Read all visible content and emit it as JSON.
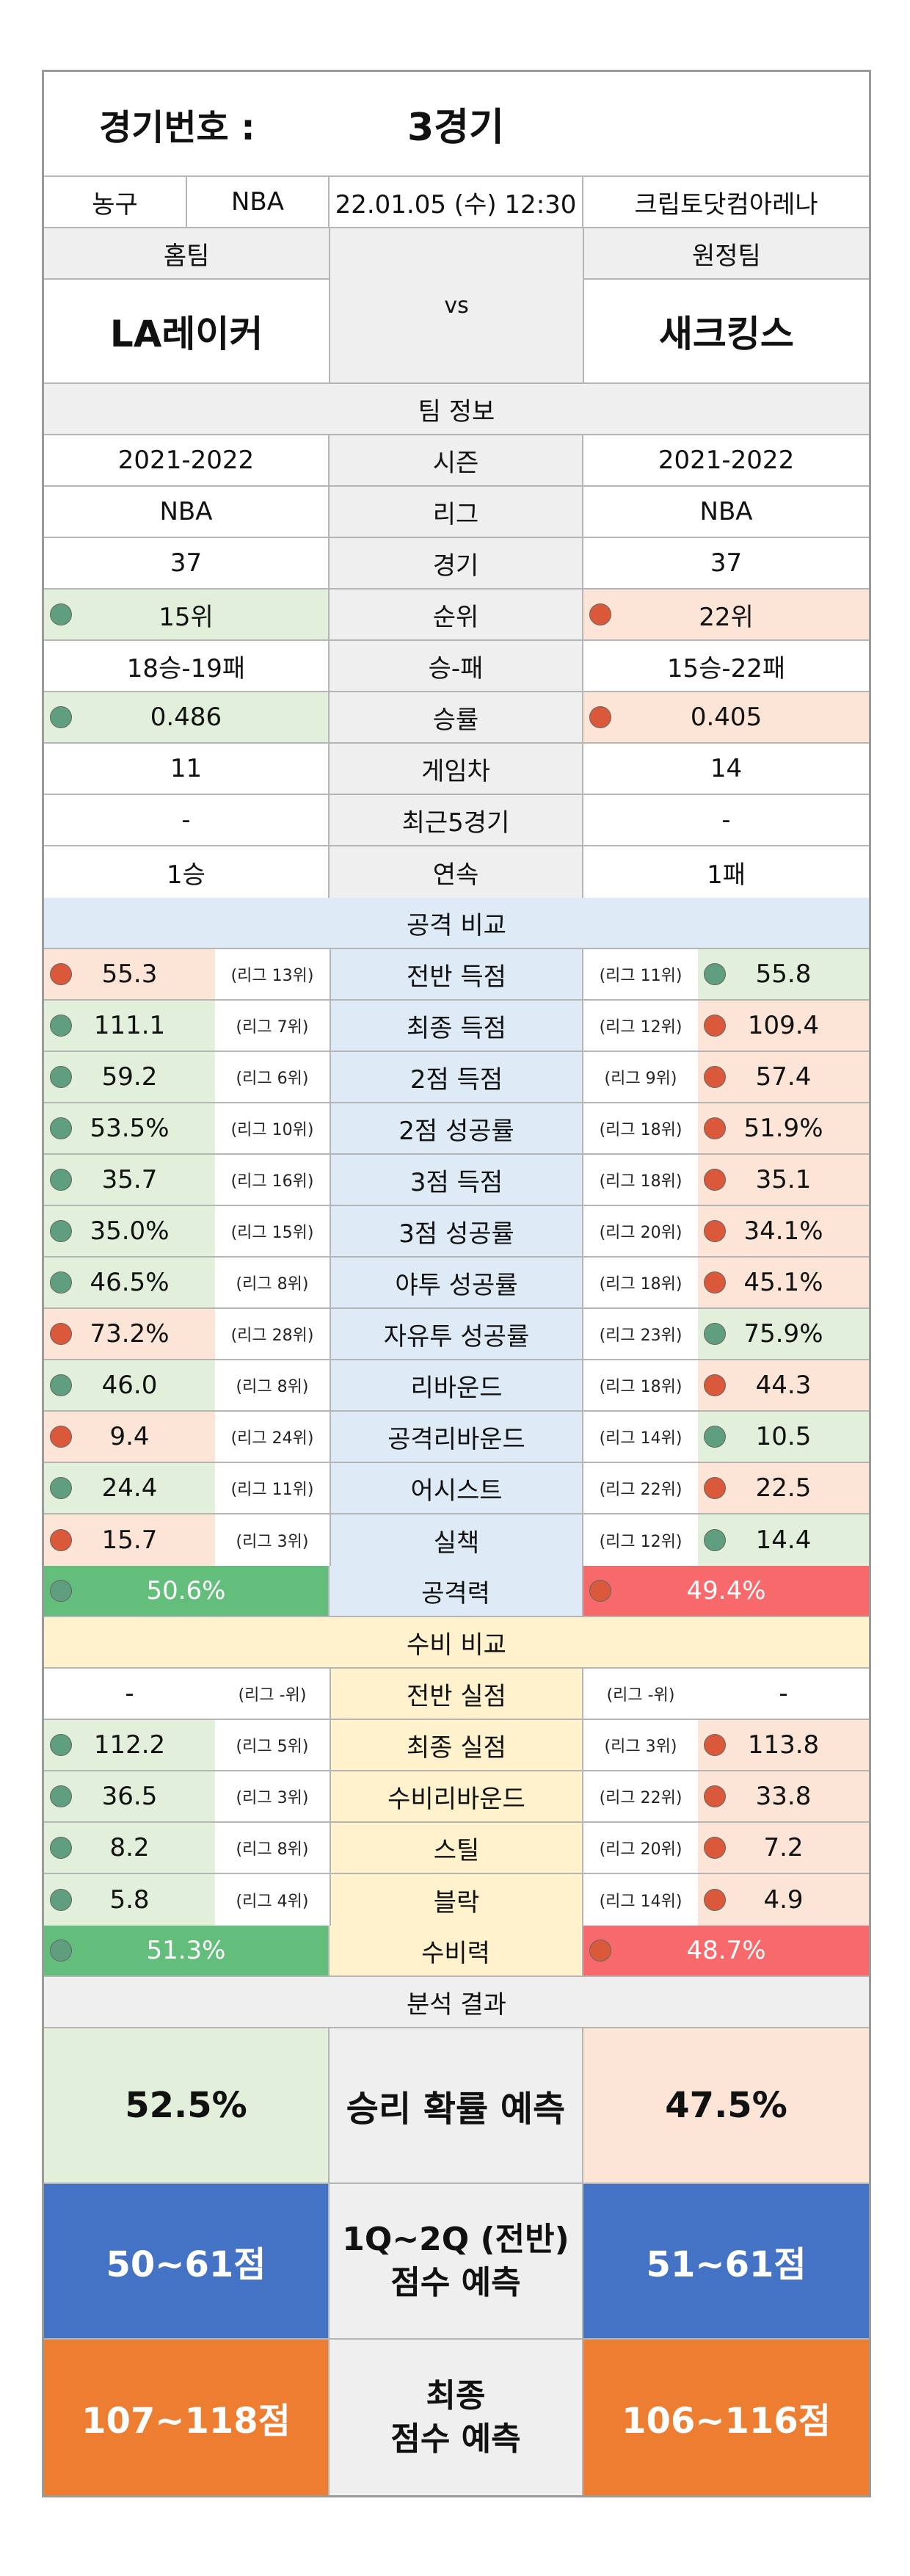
{
  "header": {
    "label": "경기번호 :",
    "game": "3경기",
    "sport": "농구",
    "league": "NBA",
    "datetime": "22.01.05 (수) 12:30",
    "venue": "크립토닷컴아레나"
  },
  "teams": {
    "home_label": "홈팀",
    "away_label": "원정팀",
    "home_name": "LA레이커",
    "away_name": "새크킹스",
    "vs": "vs"
  },
  "team_info": {
    "title": "팀 정보",
    "rows": [
      {
        "label": "시즌",
        "home": "2021-2022",
        "away": "2021-2022",
        "hl": ""
      },
      {
        "label": "리그",
        "home": "NBA",
        "away": "NBA",
        "hl": ""
      },
      {
        "label": "경기",
        "home": "37",
        "away": "37",
        "hl": ""
      },
      {
        "label": "순위",
        "home": "15위",
        "away": "22위",
        "hl": "home"
      },
      {
        "label": "승-패",
        "home": "18승-19패",
        "away": "15승-22패",
        "hl": ""
      },
      {
        "label": "승률",
        "home": "0.486",
        "away": "0.405",
        "hl": "home"
      },
      {
        "label": "게임차",
        "home": "11",
        "away": "14",
        "hl": ""
      },
      {
        "label": "최근5경기",
        "home": "-",
        "away": "-",
        "hl": ""
      },
      {
        "label": "연속",
        "home": "1승",
        "away": "1패",
        "hl": ""
      }
    ]
  },
  "attack": {
    "title": "공격 비교",
    "rows": [
      {
        "label": "전반 득점",
        "home": "55.3",
        "home_rank": "(리그 13위)",
        "away": "55.8",
        "away_rank": "(리그 11위)",
        "hl": "away"
      },
      {
        "label": "최종 득점",
        "home": "111.1",
        "home_rank": "(리그 7위)",
        "away": "109.4",
        "away_rank": "(리그 12위)",
        "hl": "home"
      },
      {
        "label": "2점 득점",
        "home": "59.2",
        "home_rank": "(리그 6위)",
        "away": "57.4",
        "away_rank": "(리그 9위)",
        "hl": "home"
      },
      {
        "label": "2점 성공률",
        "home": "53.5%",
        "home_rank": "(리그 10위)",
        "away": "51.9%",
        "away_rank": "(리그 18위)",
        "hl": "home"
      },
      {
        "label": "3점 득점",
        "home": "35.7",
        "home_rank": "(리그 16위)",
        "away": "35.1",
        "away_rank": "(리그 18위)",
        "hl": "home"
      },
      {
        "label": "3점 성공률",
        "home": "35.0%",
        "home_rank": "(리그 15위)",
        "away": "34.1%",
        "away_rank": "(리그 20위)",
        "hl": "home"
      },
      {
        "label": "야투 성공률",
        "home": "46.5%",
        "home_rank": "(리그 8위)",
        "away": "45.1%",
        "away_rank": "(리그 18위)",
        "hl": "home"
      },
      {
        "label": "자유투 성공률",
        "home": "73.2%",
        "home_rank": "(리그 28위)",
        "away": "75.9%",
        "away_rank": "(리그 23위)",
        "hl": "away"
      },
      {
        "label": "리바운드",
        "home": "46.0",
        "home_rank": "(리그 8위)",
        "away": "44.3",
        "away_rank": "(리그 18위)",
        "hl": "home"
      },
      {
        "label": "공격리바운드",
        "home": "9.4",
        "home_rank": "(리그 24위)",
        "away": "10.5",
        "away_rank": "(리그 14위)",
        "hl": "away"
      },
      {
        "label": "어시스트",
        "home": "24.4",
        "home_rank": "(리그 11위)",
        "away": "22.5",
        "away_rank": "(리그 22위)",
        "hl": "home"
      },
      {
        "label": "실책",
        "home": "15.7",
        "home_rank": "(리그 3위)",
        "away": "14.4",
        "away_rank": "(리그 12위)",
        "hl": "away"
      }
    ],
    "power_label": "공격력",
    "home_power": "50.6%",
    "away_power": "49.4%"
  },
  "defense": {
    "title": "수비 비교",
    "rows": [
      {
        "label": "전반 실점",
        "home": "-",
        "home_rank": "(리그 -위)",
        "away": "-",
        "away_rank": "(리그 -위)",
        "hl": ""
      },
      {
        "label": "최종 실점",
        "home": "112.2",
        "home_rank": "(리그 5위)",
        "away": "113.8",
        "away_rank": "(리그 3위)",
        "hl": "home"
      },
      {
        "label": "수비리바운드",
        "home": "36.5",
        "home_rank": "(리그 3위)",
        "away": "33.8",
        "away_rank": "(리그 22위)",
        "hl": "home"
      },
      {
        "label": "스틸",
        "home": "8.2",
        "home_rank": "(리그 8위)",
        "away": "7.2",
        "away_rank": "(리그 20위)",
        "hl": "home"
      },
      {
        "label": "블락",
        "home": "5.8",
        "home_rank": "(리그 4위)",
        "away": "4.9",
        "away_rank": "(리그 14위)",
        "hl": "home"
      }
    ],
    "power_label": "수비력",
    "home_power": "51.3%",
    "away_power": "48.7%"
  },
  "analysis": {
    "title": "분석 결과",
    "win_label": "승리 확률 예측",
    "home_win": "52.5%",
    "away_win": "47.5%",
    "half_label_1": "1Q~2Q (전반)",
    "half_label_2": "점수 예측",
    "home_half": "50~61점",
    "away_half": "51~61점",
    "final_label_1": "최종",
    "final_label_2": "점수 예측",
    "home_final": "107~118점",
    "away_final": "106~116점"
  },
  "colors": {
    "win_bg": "#e2efda",
    "lose_bg": "#fce4d6",
    "good_dot": "#5f9f7f",
    "bad_dot": "#d9593a",
    "power_good": "#63be7b",
    "power_bad": "#f8696b",
    "half_bg": "#4472c4",
    "final_bg": "#ed7d31"
  }
}
